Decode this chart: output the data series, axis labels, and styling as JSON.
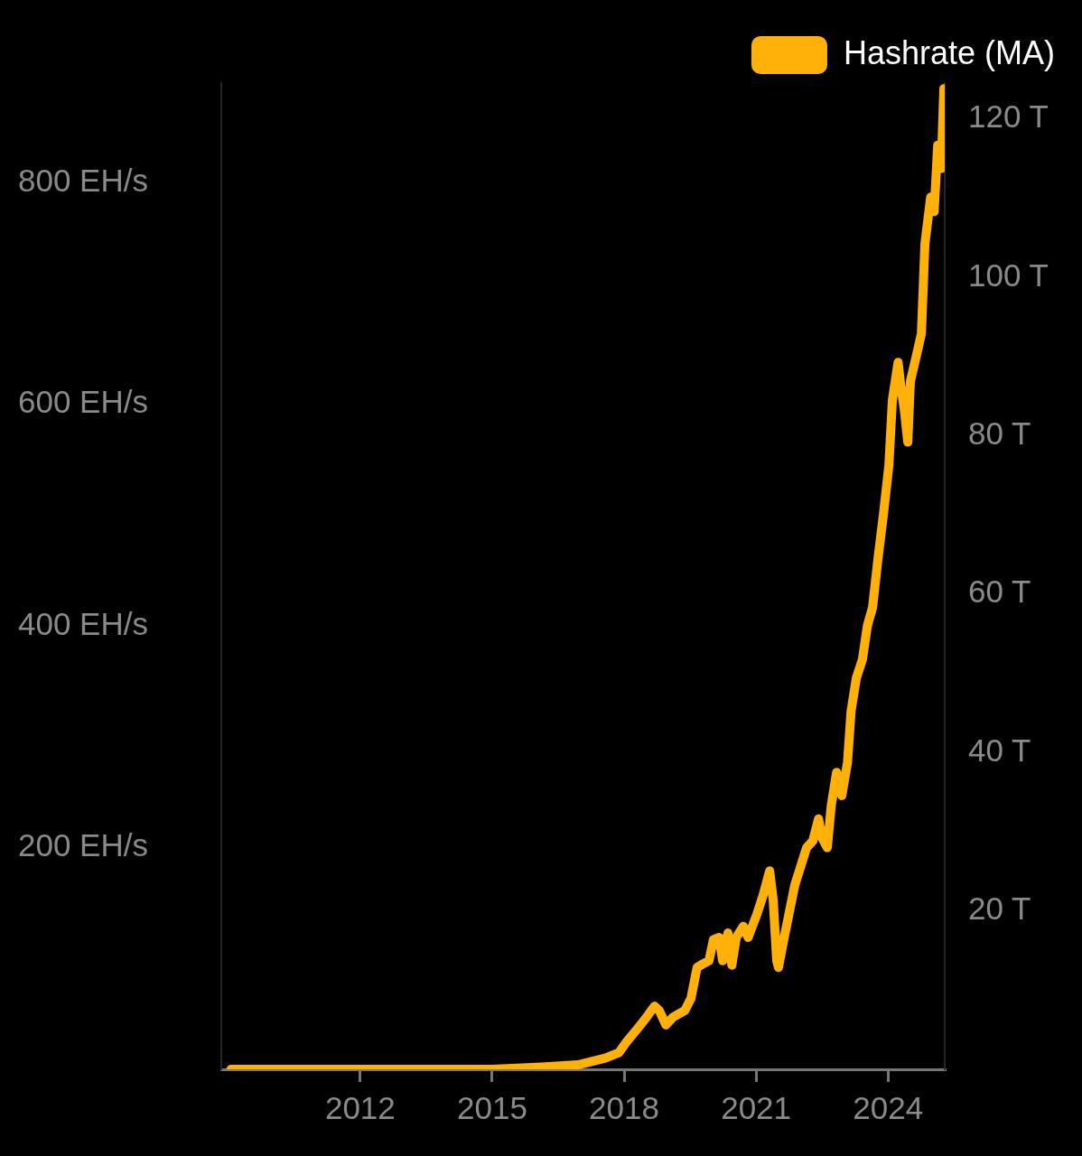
{
  "chart_data": {
    "type": "line",
    "x": [
      2009.06,
      2012.02,
      2015.0,
      2016.13,
      2016.95,
      2017.57,
      2017.88,
      2018.04,
      2018.29,
      2018.49,
      2018.69,
      2018.8,
      2018.95,
      2019.11,
      2019.38,
      2019.52,
      2019.66,
      2019.79,
      2019.93,
      2020.03,
      2020.16,
      2020.24,
      2020.36,
      2020.45,
      2020.55,
      2020.71,
      2020.82,
      2021.02,
      2021.16,
      2021.31,
      2021.39,
      2021.47,
      2021.51,
      2021.64,
      2021.88,
      2022.15,
      2022.29,
      2022.42,
      2022.5,
      2022.62,
      2022.71,
      2022.83,
      2022.95,
      2023.08,
      2023.16,
      2023.28,
      2023.42,
      2023.53,
      2023.65,
      2023.77,
      2023.9,
      2024.02,
      2024.1,
      2024.23,
      2024.29,
      2024.37,
      2024.45,
      2024.51,
      2024.64,
      2024.76,
      2024.84,
      2024.97,
      2025.05,
      2025.13,
      2025.21,
      2025.27
    ],
    "series": [
      {
        "name": "Hashrate (MA)",
        "color": "#ffb10a",
        "values": [
          0,
          0,
          0,
          2,
          4,
          10,
          15,
          24,
          36,
          46,
          57,
          53,
          40,
          47,
          53,
          64,
          92,
          95,
          98,
          117,
          119,
          98,
          123,
          94,
          119,
          129,
          119,
          140,
          157,
          179,
          153,
          98,
          92,
          119,
          166,
          200,
          206,
          226,
          209,
          200,
          238,
          268,
          247,
          277,
          323,
          353,
          370,
          400,
          417,
          460,
          502,
          545,
          604,
          638,
          617,
          596,
          566,
          621,
          643,
          664,
          745,
          787,
          774,
          834,
          813,
          885
        ]
      }
    ],
    "xlim": [
      2008.84,
      2025.29
    ],
    "xticks": [
      2012,
      2015,
      2018,
      2021,
      2024
    ],
    "ylim": [
      0,
      890
    ],
    "yticks": [
      {
        "value": 200,
        "label": "200 EH/s"
      },
      {
        "value": 400,
        "label": "400 EH/s"
      },
      {
        "value": 600,
        "label": "600 EH/s"
      },
      {
        "value": 800,
        "label": "800 EH/s"
      }
    ],
    "y2lim": [
      0,
      124.5
    ],
    "y2ticks": [
      {
        "value": 20,
        "label": "20 T"
      },
      {
        "value": 40,
        "label": "40 T"
      },
      {
        "value": 60,
        "label": "60 T"
      },
      {
        "value": 80,
        "label": "80 T"
      },
      {
        "value": 100,
        "label": "100 T"
      },
      {
        "value": 120,
        "label": "120 T"
      }
    ],
    "grid": false,
    "legend": "top right",
    "marker": "none",
    "line_style": "solid"
  }
}
